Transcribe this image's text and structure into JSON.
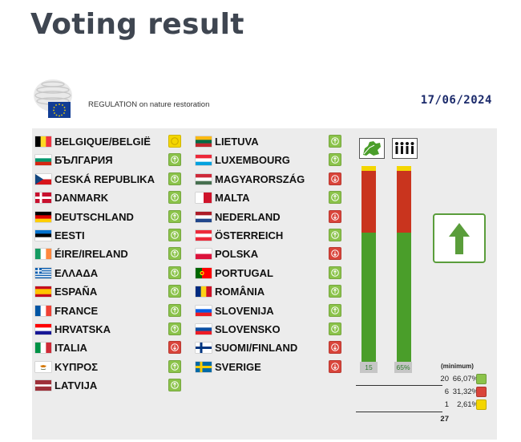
{
  "page": {
    "title": "Voting result"
  },
  "document": {
    "title": "REGULATION on nature restoration",
    "date": "17/06/2024"
  },
  "colors": {
    "yes": "#4a9e2a",
    "no": "#c9341e",
    "abstain": "#f4d600",
    "border_green": "#5a9d3b",
    "date_blue": "#1b2a6b"
  },
  "countries_left": [
    {
      "name": "BELGIQUE/BELGIË",
      "vote": "abstain"
    },
    {
      "name": "БЪЛГАРИЯ",
      "vote": "yes"
    },
    {
      "name": "CESKÁ REPUBLIKA",
      "vote": "yes"
    },
    {
      "name": "DANMARK",
      "vote": "yes"
    },
    {
      "name": "DEUTSCHLAND",
      "vote": "yes"
    },
    {
      "name": "EESTI",
      "vote": "yes"
    },
    {
      "name": "ÉIRE/IRELAND",
      "vote": "yes"
    },
    {
      "name": "ΕΛΛΑΔΑ",
      "vote": "yes"
    },
    {
      "name": "ESPAÑA",
      "vote": "yes"
    },
    {
      "name": "FRANCE",
      "vote": "yes"
    },
    {
      "name": "HRVATSKA",
      "vote": "yes"
    },
    {
      "name": "ITALIA",
      "vote": "no"
    },
    {
      "name": "ΚΥΠΡΟΣ",
      "vote": "yes"
    },
    {
      "name": "LATVIJA",
      "vote": "yes"
    }
  ],
  "countries_right": [
    {
      "name": "LIETUVA",
      "vote": "yes"
    },
    {
      "name": "LUXEMBOURG",
      "vote": "yes"
    },
    {
      "name": "MAGYARORSZÁG",
      "vote": "no"
    },
    {
      "name": "MALTA",
      "vote": "yes"
    },
    {
      "name": "NEDERLAND",
      "vote": "no"
    },
    {
      "name": "ÖSTERREICH",
      "vote": "yes"
    },
    {
      "name": "POLSKA",
      "vote": "no"
    },
    {
      "name": "PORTUGAL",
      "vote": "yes"
    },
    {
      "name": "ROMÂNIA",
      "vote": "yes"
    },
    {
      "name": "SLOVENIJA",
      "vote": "yes"
    },
    {
      "name": "SLOVENSKO",
      "vote": "yes"
    },
    {
      "name": "SUOMI/FINLAND",
      "vote": "no"
    },
    {
      "name": "SVERIGE",
      "vote": "no"
    }
  ],
  "bars": {
    "member_states": {
      "label": "15",
      "yes_pct": 66.07,
      "no_pct": 31.32,
      "abstain_pct": 2.61
    },
    "population": {
      "label": "65%",
      "yes_pct": 66.07,
      "no_pct": 31.32,
      "abstain_pct": 2.61
    }
  },
  "bar_population_shares": {
    "yes": 66.07,
    "no": 31.32,
    "abstain": 2.61
  },
  "summary": {
    "minimum_label": "(minimum)",
    "rows": [
      {
        "count": "20",
        "pct": "66,07%",
        "vote": "yes"
      },
      {
        "count": "6",
        "pct": "31,32%",
        "vote": "no"
      },
      {
        "count": "1",
        "pct": "2,61%",
        "vote": "abstain"
      }
    ],
    "total": "27"
  },
  "result": {
    "icon": "arrow-up-icon",
    "outcome": "adopted"
  }
}
